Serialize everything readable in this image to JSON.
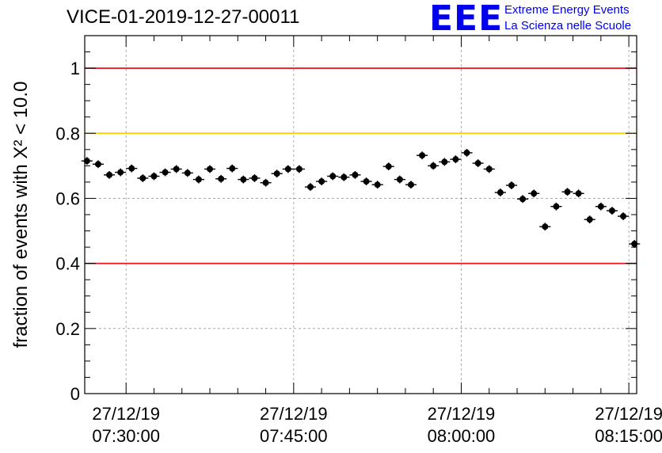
{
  "header": {
    "title": "VICE-01-2019-12-27-00011",
    "logo_text": "EEE",
    "logo_line1": "Extreme Energy Events",
    "logo_line2": "La Scienza nelle Scuole"
  },
  "colors": {
    "points": "#000000",
    "red_line": "#e8141c",
    "yellow_line": "#ffcc00",
    "grid": "#999999",
    "logo": "#0000ee"
  },
  "chart_data": {
    "type": "scatter",
    "title": "VICE-01-2019-12-27-00011",
    "ylabel": "fraction of events with X² < 10.0",
    "ylim": [
      0,
      1.1
    ],
    "xlim_minutes": [
      26.3,
      75.7
    ],
    "y_ticks": [
      {
        "value": 0,
        "label": "0"
      },
      {
        "value": 0.2,
        "label": "0.2"
      },
      {
        "value": 0.4,
        "label": "0.4"
      },
      {
        "value": 0.6,
        "label": "0.6"
      },
      {
        "value": 0.8,
        "label": "0.8"
      },
      {
        "value": 1,
        "label": "1"
      }
    ],
    "x_ticks": [
      {
        "minutes": 30,
        "date": "27/12/19",
        "time": "07:30:00"
      },
      {
        "minutes": 45,
        "date": "27/12/19",
        "time": "07:45:00"
      },
      {
        "minutes": 60,
        "date": "27/12/19",
        "time": "08:00:00"
      },
      {
        "minutes": 75,
        "date": "27/12/19",
        "time": "08:15:00"
      }
    ],
    "reference_lines": [
      {
        "y": 1.0,
        "color": "red"
      },
      {
        "y": 0.8,
        "color": "yellow"
      },
      {
        "y": 0.4,
        "color": "red"
      }
    ],
    "x_step_minutes": 1,
    "x_start_minutes": 26.5,
    "values": [
      0.715,
      0.705,
      0.672,
      0.68,
      0.692,
      0.662,
      0.668,
      0.68,
      0.69,
      0.678,
      0.658,
      0.69,
      0.66,
      0.692,
      0.658,
      0.662,
      0.648,
      0.676,
      0.69,
      0.69,
      0.635,
      0.652,
      0.668,
      0.665,
      0.672,
      0.652,
      0.642,
      0.698,
      0.658,
      0.642,
      0.732,
      0.7,
      0.712,
      0.72,
      0.74,
      0.708,
      0.69,
      0.618,
      0.64,
      0.598,
      0.615,
      0.513,
      0.575,
      0.62,
      0.615,
      0.535,
      0.575,
      0.562,
      0.545,
      0.46
    ],
    "y_error": 0.012,
    "x_error_minutes": 0.5,
    "grid": true
  }
}
